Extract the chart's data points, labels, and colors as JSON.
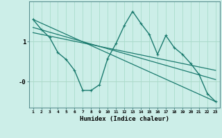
{
  "xlabel": "Humidex (Indice chaleur)",
  "bg_color": "#cceee8",
  "grid_color": "#aaddcc",
  "line_color": "#1a7a6e",
  "axhline_1_color": "#aabbbb",
  "axhline_0_color": "#ccaaaa",
  "x_ticks": [
    1,
    2,
    3,
    4,
    5,
    6,
    7,
    8,
    9,
    10,
    11,
    12,
    13,
    14,
    15,
    16,
    17,
    18,
    19,
    20,
    21,
    22,
    23
  ],
  "y_ticks_pos": [
    1.0,
    0.0
  ],
  "y_tick_labels": [
    "1",
    "-0"
  ],
  "ylim": [
    -0.65,
    2.0
  ],
  "xlim": [
    0.5,
    23.5
  ],
  "series": [
    {
      "x": [
        1,
        2,
        3,
        4,
        5,
        6,
        7,
        8,
        9,
        10,
        11,
        12,
        13,
        14,
        15,
        16,
        17,
        18,
        19,
        20,
        21,
        22,
        23
      ],
      "y": [
        1.55,
        1.3,
        1.1,
        0.72,
        0.55,
        0.28,
        -0.22,
        -0.22,
        -0.08,
        0.58,
        0.95,
        1.4,
        1.75,
        1.45,
        1.18,
        0.68,
        1.15,
        0.85,
        0.68,
        0.45,
        0.18,
        -0.3,
        -0.5
      ],
      "marker": "+",
      "linewidth": 1.0
    },
    {
      "x": [
        1,
        23
      ],
      "y": [
        1.55,
        -0.5
      ],
      "marker": null,
      "linewidth": 0.9
    },
    {
      "x": [
        1,
        23
      ],
      "y": [
        1.35,
        0.05
      ],
      "marker": null,
      "linewidth": 0.9
    },
    {
      "x": [
        1,
        23
      ],
      "y": [
        1.22,
        0.28
      ],
      "marker": null,
      "linewidth": 0.9
    }
  ]
}
